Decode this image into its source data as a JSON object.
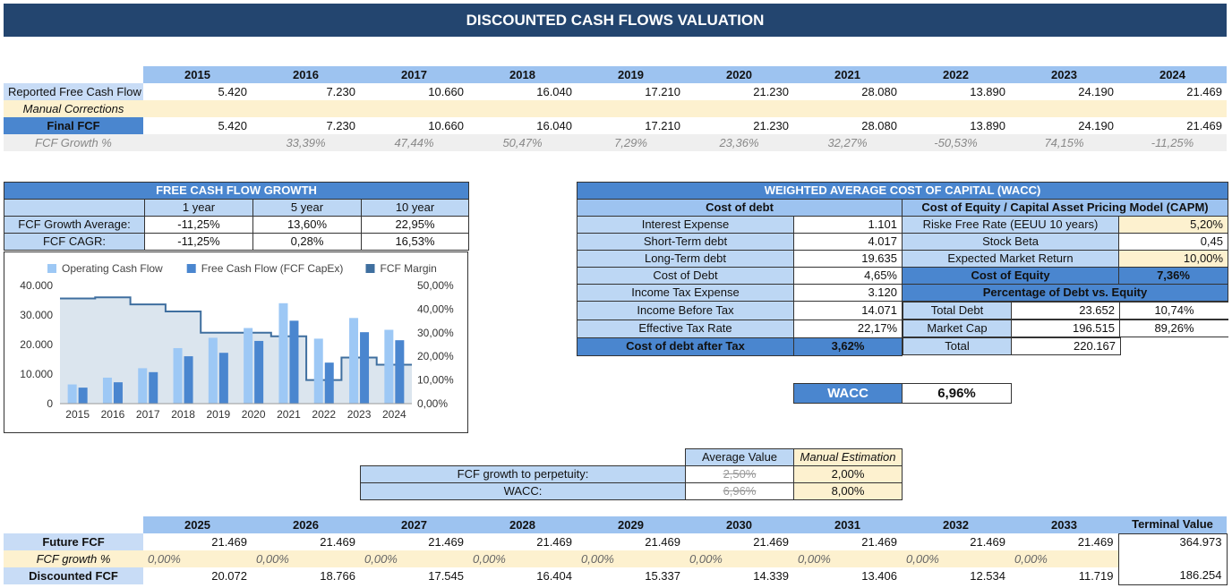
{
  "title": "DISCOUNTED CASH FLOWS VALUATION",
  "hist": {
    "years": [
      "2015",
      "2016",
      "2017",
      "2018",
      "2019",
      "2020",
      "2021",
      "2022",
      "2023",
      "2024"
    ],
    "rows": [
      {
        "label": "Reported Free Cash Flow",
        "values": [
          "5.420",
          "7.230",
          "10.660",
          "16.040",
          "17.210",
          "21.230",
          "28.080",
          "13.890",
          "24.190",
          "21.469"
        ]
      },
      {
        "label": "Manual Corrections",
        "values": [
          "",
          "",
          "",
          "",
          "",
          "",
          "",
          "",
          "",
          ""
        ]
      },
      {
        "label": "Final FCF",
        "values": [
          "5.420",
          "7.230",
          "10.660",
          "16.040",
          "17.210",
          "21.230",
          "28.080",
          "13.890",
          "24.190",
          "21.469"
        ]
      },
      {
        "label": "FCF Growth %",
        "values": [
          "",
          "33,39%",
          "47,44%",
          "50,47%",
          "7,29%",
          "23,36%",
          "32,27%",
          "-50,53%",
          "74,15%",
          "-11,25%"
        ]
      }
    ]
  },
  "growth": {
    "title": "FREE CASH FLOW GROWTH",
    "cols": [
      "1 year",
      "5 year",
      "10 year"
    ],
    "rows": [
      {
        "label": "FCF Growth Average:",
        "values": [
          "-11,25%",
          "13,60%",
          "22,95%"
        ]
      },
      {
        "label": "FCF CAGR:",
        "values": [
          "-11,25%",
          "0,28%",
          "16,53%"
        ]
      }
    ]
  },
  "chart_data": {
    "type": "bar",
    "categories": [
      "2015",
      "2016",
      "2017",
      "2018",
      "2019",
      "2020",
      "2021",
      "2022",
      "2023",
      "2024"
    ],
    "series": [
      {
        "name": "Operating Cash Flow",
        "type": "bar",
        "color": "#9dc8f5",
        "values": [
          6500,
          8800,
          12000,
          18800,
          22300,
          25600,
          34000,
          22000,
          29000,
          25000
        ]
      },
      {
        "name": "Free Cash Flow (FCF CapEx)",
        "type": "bar",
        "color": "#4a86cf",
        "values": [
          5420,
          7230,
          10660,
          16040,
          17210,
          21230,
          28080,
          13890,
          24190,
          21469
        ]
      },
      {
        "name": "FCF Margin",
        "type": "area-step",
        "color": "#3f6f9f",
        "values": [
          44.5,
          45.0,
          42.0,
          39.0,
          30.0,
          30.0,
          28.5,
          10.0,
          19.5,
          16.5
        ]
      }
    ],
    "ylim": [
      0,
      40000
    ],
    "y2lim": [
      0,
      50
    ],
    "yticks": [
      "40.000",
      "30.000",
      "20.000",
      "10.000",
      "0"
    ],
    "y2ticks": [
      "50,00%",
      "40,00%",
      "30,00%",
      "20,00%",
      "10,00%",
      "0,00%"
    ],
    "legend": "top"
  },
  "wacc": {
    "title": "WEIGHTED AVERAGE COST OF CAPITAL (WACC)",
    "debt_header": "Cost of debt",
    "debt_rows": [
      {
        "label": "Interest Expense",
        "value": "1.101"
      },
      {
        "label": "Short-Term debt",
        "value": "4.017"
      },
      {
        "label": "Long-Term debt",
        "value": "19.635"
      },
      {
        "label": "Cost of Debt",
        "value": "4,65%"
      },
      {
        "label": "Income Tax Expense",
        "value": "3.120"
      },
      {
        "label": "Income Before Tax",
        "value": "14.071"
      },
      {
        "label": "Effective Tax Rate",
        "value": "22,17%"
      }
    ],
    "debt_after_tax": {
      "label": "Cost of debt after Tax",
      "value": "3,62%"
    },
    "equity_header": "Cost of Equity / Capital Asset Pricing Model (CAPM)",
    "equity_rows": [
      {
        "label": "Riske Free Rate (EEUU 10 years)",
        "value": "5,20%"
      },
      {
        "label": "Stock Beta",
        "value": "0,45"
      },
      {
        "label": "Expected Market Return",
        "value": "10,00%"
      }
    ],
    "cost_of_equity": {
      "label": "Cost of Equity",
      "value": "7,36%"
    },
    "pct_header": "Percentage of Debt vs. Equity",
    "pct_rows": [
      {
        "label": "Total Debt",
        "value": "23.652",
        "pct": "10,74%"
      },
      {
        "label": "Market Cap",
        "value": "196.515",
        "pct": "89,26%"
      },
      {
        "label": "Total",
        "value": "220.167",
        "pct": ""
      }
    ],
    "result_label": "WACC",
    "result_value": "6,96%"
  },
  "assumptions": {
    "col_avg": "Average Value",
    "col_manual": "Manual Estimation",
    "rows": [
      {
        "label": "FCF growth to perpetuity:",
        "avg": "2,50%",
        "manual": "2,00%"
      },
      {
        "label": "WACC:",
        "avg": "6,96%",
        "manual": "8,00%"
      }
    ]
  },
  "forecast": {
    "years": [
      "2025",
      "2026",
      "2027",
      "2028",
      "2029",
      "2030",
      "2031",
      "2032",
      "2033"
    ],
    "terminal_label": "Terminal Value",
    "rows": [
      {
        "label": "Future FCF",
        "values": [
          "21.469",
          "21.469",
          "21.469",
          "21.469",
          "21.469",
          "21.469",
          "21.469",
          "21.469",
          "21.469"
        ],
        "terminal": "364.973"
      },
      {
        "label": "FCF growth %",
        "values": [
          "0,00%",
          "0,00%",
          "0,00%",
          "0,00%",
          "0,00%",
          "0,00%",
          "0,00%",
          "0,00%",
          "0,00%"
        ],
        "terminal": ""
      },
      {
        "label": "Discounted FCF",
        "values": [
          "20.072",
          "18.766",
          "17.545",
          "16.404",
          "15.337",
          "14.339",
          "13.406",
          "12.534",
          "11.719"
        ],
        "terminal": "186.254"
      }
    ]
  }
}
